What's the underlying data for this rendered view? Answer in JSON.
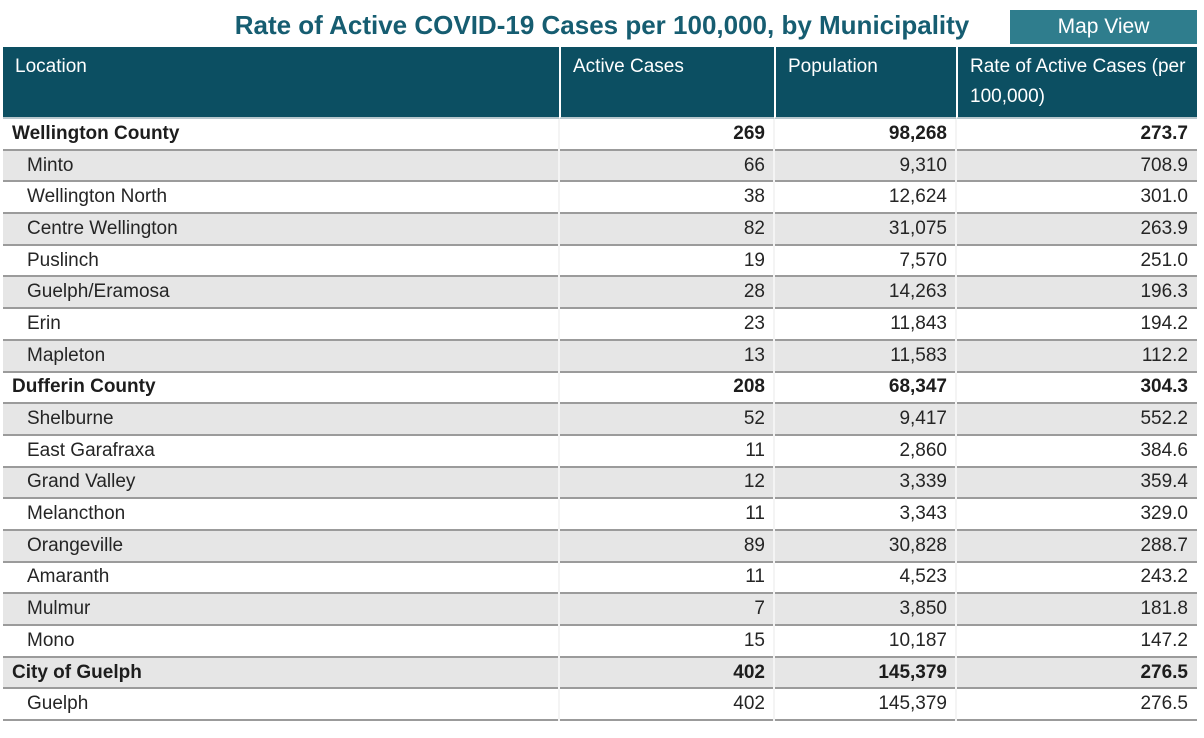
{
  "page": {
    "title": "Rate of Active COVID-19 Cases per 100,000, by Municipality",
    "map_view_label": "Map View"
  },
  "table": {
    "columns": [
      "Location",
      "Active Cases",
      "Population",
      "Rate of Active Cases (per 100,000)"
    ],
    "rows": [
      {
        "location": "Wellington County",
        "active_cases": "269",
        "population": "98,268",
        "rate": "273.7",
        "group": true
      },
      {
        "location": "Minto",
        "active_cases": "66",
        "population": "9,310",
        "rate": "708.9",
        "group": false
      },
      {
        "location": "Wellington North",
        "active_cases": "38",
        "population": "12,624",
        "rate": "301.0",
        "group": false
      },
      {
        "location": "Centre Wellington",
        "active_cases": "82",
        "population": "31,075",
        "rate": "263.9",
        "group": false
      },
      {
        "location": "Puslinch",
        "active_cases": "19",
        "population": "7,570",
        "rate": "251.0",
        "group": false
      },
      {
        "location": "Guelph/Eramosa",
        "active_cases": "28",
        "population": "14,263",
        "rate": "196.3",
        "group": false
      },
      {
        "location": "Erin",
        "active_cases": "23",
        "population": "11,843",
        "rate": "194.2",
        "group": false
      },
      {
        "location": "Mapleton",
        "active_cases": "13",
        "population": "11,583",
        "rate": "112.2",
        "group": false
      },
      {
        "location": "Dufferin County",
        "active_cases": "208",
        "population": "68,347",
        "rate": "304.3",
        "group": true
      },
      {
        "location": "Shelburne",
        "active_cases": "52",
        "population": "9,417",
        "rate": "552.2",
        "group": false
      },
      {
        "location": "East Garafraxa",
        "active_cases": "11",
        "population": "2,860",
        "rate": "384.6",
        "group": false
      },
      {
        "location": "Grand Valley",
        "active_cases": "12",
        "population": "3,339",
        "rate": "359.4",
        "group": false
      },
      {
        "location": "Melancthon",
        "active_cases": "11",
        "population": "3,343",
        "rate": "329.0",
        "group": false
      },
      {
        "location": "Orangeville",
        "active_cases": "89",
        "population": "30,828",
        "rate": "288.7",
        "group": false
      },
      {
        "location": "Amaranth",
        "active_cases": "11",
        "population": "4,523",
        "rate": "243.2",
        "group": false
      },
      {
        "location": "Mulmur",
        "active_cases": "7",
        "population": "3,850",
        "rate": "181.8",
        "group": false
      },
      {
        "location": "Mono",
        "active_cases": "15",
        "population": "10,187",
        "rate": "147.2",
        "group": false
      },
      {
        "location": "City of Guelph",
        "active_cases": "402",
        "population": "145,379",
        "rate": "276.5",
        "group": true
      },
      {
        "location": "Guelph",
        "active_cases": "402",
        "population": "145,379",
        "rate": "276.5",
        "group": false
      }
    ]
  },
  "colors": {
    "header_bg": "#0C4F62",
    "header_bottom_border": "#B9C8CE",
    "title_text": "#165D71",
    "button_bg": "#2F7D8D",
    "button_text": "#FFFFFF",
    "stripe_row_bg": "#E6E6E6",
    "row_border": "#9B9B9B",
    "body_text": "#252525"
  },
  "chart_data": {
    "type": "table",
    "title": "Rate of Active COVID-19 Cases per 100,000, by Municipality",
    "columns": [
      "Location",
      "Active Cases",
      "Population",
      "Rate of Active Cases (per 100,000)"
    ],
    "group_rows": [
      "Wellington County",
      "Dufferin County",
      "City of Guelph"
    ],
    "rows": [
      [
        "Wellington County",
        269,
        98268,
        273.7
      ],
      [
        "Minto",
        66,
        9310,
        708.9
      ],
      [
        "Wellington North",
        38,
        12624,
        301.0
      ],
      [
        "Centre Wellington",
        82,
        31075,
        263.9
      ],
      [
        "Puslinch",
        19,
        7570,
        251.0
      ],
      [
        "Guelph/Eramosa",
        28,
        14263,
        196.3
      ],
      [
        "Erin",
        23,
        11843,
        194.2
      ],
      [
        "Mapleton",
        13,
        11583,
        112.2
      ],
      [
        "Dufferin County",
        208,
        68347,
        304.3
      ],
      [
        "Shelburne",
        52,
        9417,
        552.2
      ],
      [
        "East Garafraxa",
        11,
        2860,
        384.6
      ],
      [
        "Grand Valley",
        12,
        3339,
        359.4
      ],
      [
        "Melancthon",
        11,
        3343,
        329.0
      ],
      [
        "Orangeville",
        89,
        30828,
        288.7
      ],
      [
        "Amaranth",
        11,
        4523,
        243.2
      ],
      [
        "Mulmur",
        7,
        3850,
        181.8
      ],
      [
        "Mono",
        15,
        10187,
        147.2
      ],
      [
        "City of Guelph",
        402,
        145379,
        276.5
      ],
      [
        "Guelph",
        402,
        145379,
        276.5
      ]
    ]
  }
}
